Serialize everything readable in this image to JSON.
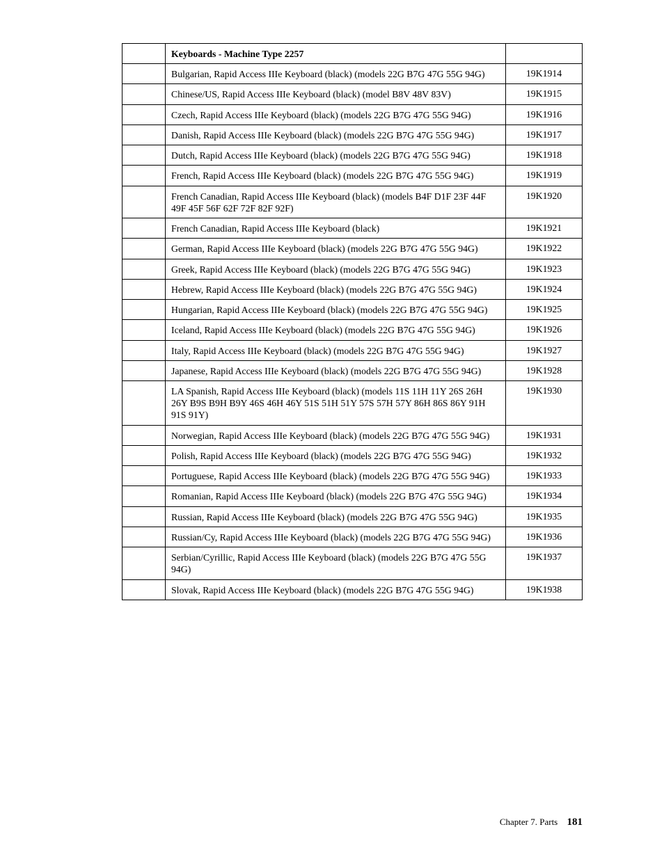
{
  "table": {
    "header": "Keyboards - Machine Type 2257",
    "rows": [
      {
        "desc": "Bulgarian, Rapid Access IIIe Keyboard (black) (models 22G B7G 47G 55G 94G)",
        "part": "19K1914"
      },
      {
        "desc": "Chinese/US, Rapid Access IIIe Keyboard (black) (model B8V 48V 83V)",
        "part": "19K1915"
      },
      {
        "desc": "Czech, Rapid Access IIIe Keyboard (black) (models 22G B7G 47G 55G 94G)",
        "part": "19K1916"
      },
      {
        "desc": "Danish, Rapid Access IIIe Keyboard (black) (models 22G B7G 47G 55G 94G)",
        "part": "19K1917"
      },
      {
        "desc": "Dutch, Rapid Access IIIe Keyboard (black) (models 22G B7G 47G 55G 94G)",
        "part": "19K1918"
      },
      {
        "desc": "French, Rapid Access IIIe Keyboard (black) (models 22G B7G 47G 55G 94G)",
        "part": "19K1919"
      },
      {
        "desc": "French Canadian, Rapid Access IIIe Keyboard (black) (models B4F D1F 23F 44F 49F 45F 56F 62F 72F 82F 92F)",
        "part": "19K1920"
      },
      {
        "desc": "French Canadian, Rapid Access IIIe Keyboard (black)",
        "part": "19K1921"
      },
      {
        "desc": "German, Rapid Access IIIe Keyboard (black) (models 22G B7G 47G 55G 94G)",
        "part": "19K1922"
      },
      {
        "desc": "Greek, Rapid Access IIIe Keyboard (black) (models 22G B7G 47G 55G 94G)",
        "part": "19K1923"
      },
      {
        "desc": "Hebrew, Rapid Access IIIe Keyboard (black) (models 22G B7G 47G 55G 94G)",
        "part": "19K1924"
      },
      {
        "desc": "Hungarian, Rapid Access IIIe Keyboard (black) (models 22G B7G 47G 55G 94G)",
        "part": "19K1925"
      },
      {
        "desc": "Iceland, Rapid Access IIIe Keyboard (black) (models 22G B7G 47G 55G 94G)",
        "part": "19K1926"
      },
      {
        "desc": "Italy, Rapid Access IIIe Keyboard (black) (models 22G B7G 47G 55G 94G)",
        "part": "19K1927"
      },
      {
        "desc": "Japanese, Rapid Access IIIe Keyboard (black) (models 22G B7G 47G 55G 94G)",
        "part": "19K1928"
      },
      {
        "desc": "LA Spanish, Rapid Access IIIe Keyboard (black) (models 11S 11H 11Y 26S 26H 26Y B9S B9H B9Y 46S 46H 46Y 51S 51H 51Y 57S 57H 57Y 86H 86S 86Y 91H 91S 91Y)",
        "part": "19K1930"
      },
      {
        "desc": "Norwegian, Rapid Access IIIe Keyboard (black) (models 22G B7G 47G 55G 94G)",
        "part": "19K1931"
      },
      {
        "desc": "Polish, Rapid Access IIIe Keyboard (black) (models 22G B7G 47G 55G 94G)",
        "part": "19K1932"
      },
      {
        "desc": "Portuguese, Rapid Access IIIe Keyboard (black) (models 22G B7G 47G 55G 94G)",
        "part": "19K1933"
      },
      {
        "desc": "Romanian, Rapid Access IIIe Keyboard (black) (models 22G B7G 47G 55G 94G)",
        "part": "19K1934"
      },
      {
        "desc": "Russian, Rapid Access IIIe Keyboard (black) (models 22G B7G 47G 55G 94G)",
        "part": "19K1935"
      },
      {
        "desc": "Russian/Cy, Rapid Access IIIe Keyboard (black) (models 22G B7G 47G 55G 94G)",
        "part": "19K1936"
      },
      {
        "desc": "Serbian/Cyrillic, Rapid Access IIIe Keyboard (black) (models 22G B7G 47G 55G 94G)",
        "part": "19K1937"
      },
      {
        "desc": "Slovak, Rapid Access IIIe Keyboard (black) (models 22G B7G 47G 55G 94G)",
        "part": "19K1938"
      }
    ]
  },
  "footer": {
    "chapter": "Chapter 7. Parts",
    "page": "181"
  }
}
